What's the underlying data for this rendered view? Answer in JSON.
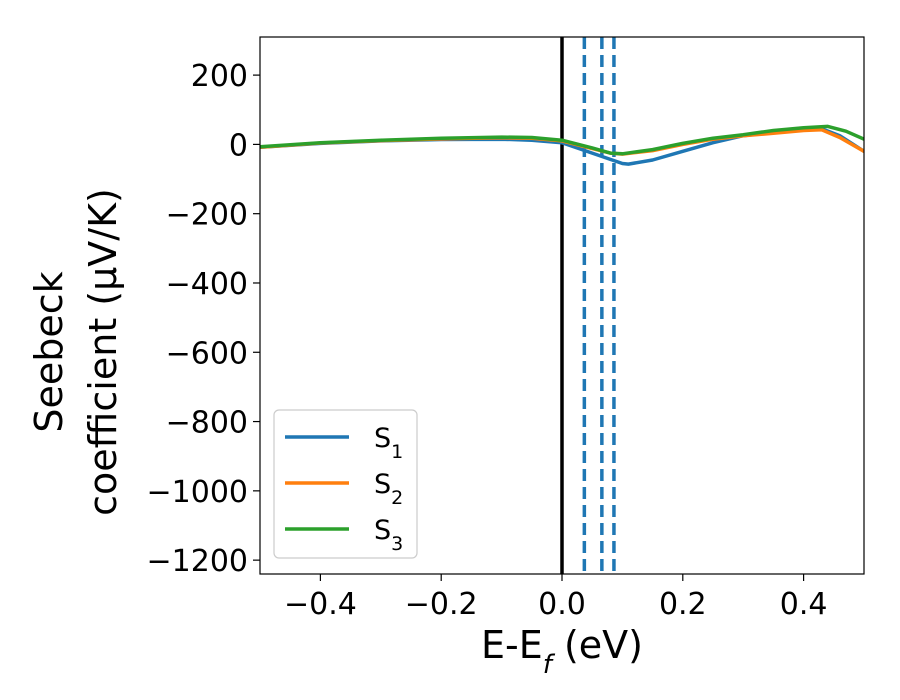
{
  "chart_data": {
    "type": "line",
    "xlabel": {
      "main": "E-E",
      "sub": "f",
      "unit": " (eV)"
    },
    "ylabel": {
      "line1": "Seebeck",
      "line2": "coefficient  (μV/K)"
    },
    "xlim": [
      -0.5,
      0.5
    ],
    "ylim": [
      -1240,
      310
    ],
    "xticks": [
      -0.4,
      -0.2,
      0.0,
      0.2,
      0.4
    ],
    "xtick_labels": [
      "−0.4",
      "−0.2",
      "0.0",
      "0.2",
      "0.4"
    ],
    "yticks": [
      200,
      0,
      -200,
      -400,
      -600,
      -800,
      -1000,
      -1200
    ],
    "ytick_labels": [
      "200",
      "0",
      "−200",
      "−400",
      "−600",
      "−800",
      "−1000",
      "−1200"
    ],
    "grid": false,
    "legend_position": "lower-left",
    "reference_lines": [
      {
        "x": 0.0,
        "style": "solid",
        "color": "#000000"
      },
      {
        "x": 0.037,
        "style": "dashed",
        "color": "#1f77b4"
      },
      {
        "x": 0.066,
        "style": "dashed",
        "color": "#1f77b4"
      },
      {
        "x": 0.086,
        "style": "dashed",
        "color": "#1f77b4"
      }
    ],
    "series": [
      {
        "name": "S",
        "sub": "1",
        "color": "#1f77b4",
        "x": [
          -0.5,
          -0.4,
          -0.3,
          -0.2,
          -0.1,
          -0.05,
          0.0,
          0.05,
          0.1,
          0.11,
          0.15,
          0.2,
          0.25,
          0.3,
          0.35,
          0.4,
          0.43,
          0.46,
          0.5
        ],
        "y": [
          -8,
          3,
          10,
          14,
          15,
          12,
          5,
          -25,
          -55,
          -57,
          -45,
          -20,
          5,
          25,
          35,
          42,
          45,
          25,
          -20
        ]
      },
      {
        "name": "S",
        "sub": "2",
        "color": "#ff7f0e",
        "x": [
          -0.5,
          -0.4,
          -0.3,
          -0.2,
          -0.1,
          -0.05,
          0.0,
          0.05,
          0.08,
          0.1,
          0.15,
          0.2,
          0.25,
          0.3,
          0.35,
          0.4,
          0.43,
          0.46,
          0.5
        ],
        "y": [
          -8,
          4,
          11,
          16,
          19,
          18,
          10,
          -12,
          -25,
          -28,
          -18,
          0,
          15,
          25,
          32,
          40,
          42,
          20,
          -20
        ]
      },
      {
        "name": "S",
        "sub": "3",
        "color": "#2ca02c",
        "x": [
          -0.5,
          -0.4,
          -0.3,
          -0.2,
          -0.1,
          -0.05,
          0.0,
          0.05,
          0.08,
          0.1,
          0.15,
          0.2,
          0.25,
          0.3,
          0.35,
          0.4,
          0.44,
          0.47,
          0.5
        ],
        "y": [
          -7,
          5,
          12,
          18,
          21,
          20,
          12,
          -10,
          -25,
          -27,
          -15,
          3,
          18,
          28,
          40,
          48,
          52,
          38,
          15
        ]
      }
    ]
  }
}
